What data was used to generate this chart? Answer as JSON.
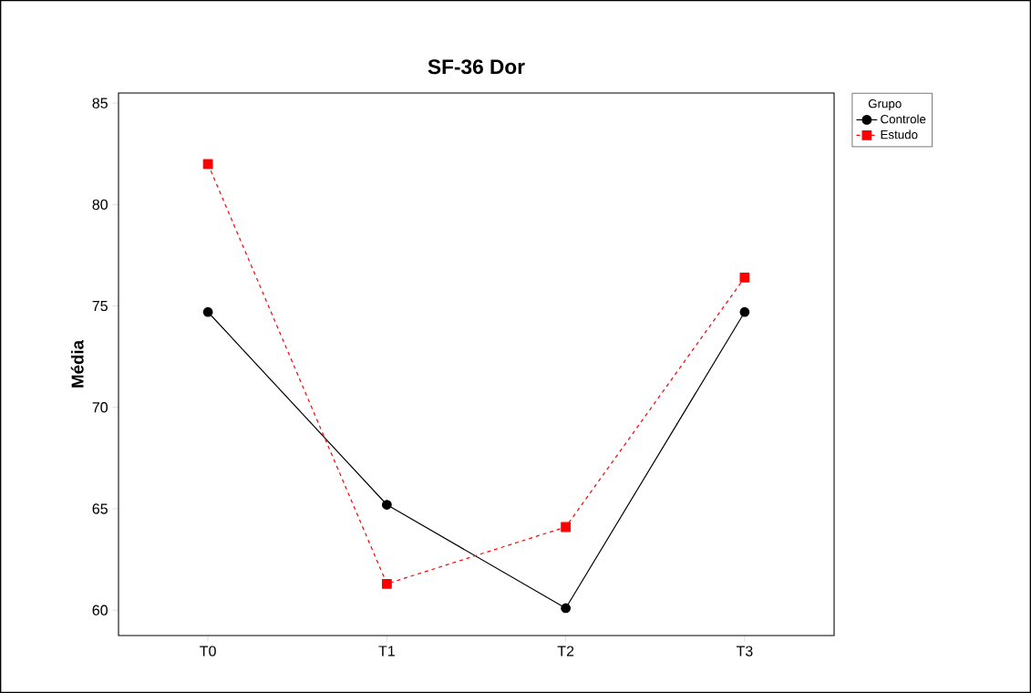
{
  "chart_data": {
    "type": "line",
    "title": "SF-36 Dor",
    "ylabel": "Média",
    "legend_title": "Grupo",
    "legend": "top right",
    "categories": [
      "T0",
      "T1",
      "T2",
      "T3"
    ],
    "ylim": [
      58.75,
      85.5
    ],
    "yticks": [
      60,
      65,
      70,
      75,
      80,
      85
    ],
    "series": [
      {
        "name": "Controle",
        "color": "#000000",
        "marker": "circle",
        "line_style": "solid",
        "values": [
          74.7,
          65.2,
          60.1,
          74.7
        ]
      },
      {
        "name": "Estudo",
        "color": "#ff0000",
        "marker": "square",
        "line_style": "dashed",
        "values": [
          82.0,
          61.3,
          64.1,
          76.4
        ]
      }
    ]
  }
}
